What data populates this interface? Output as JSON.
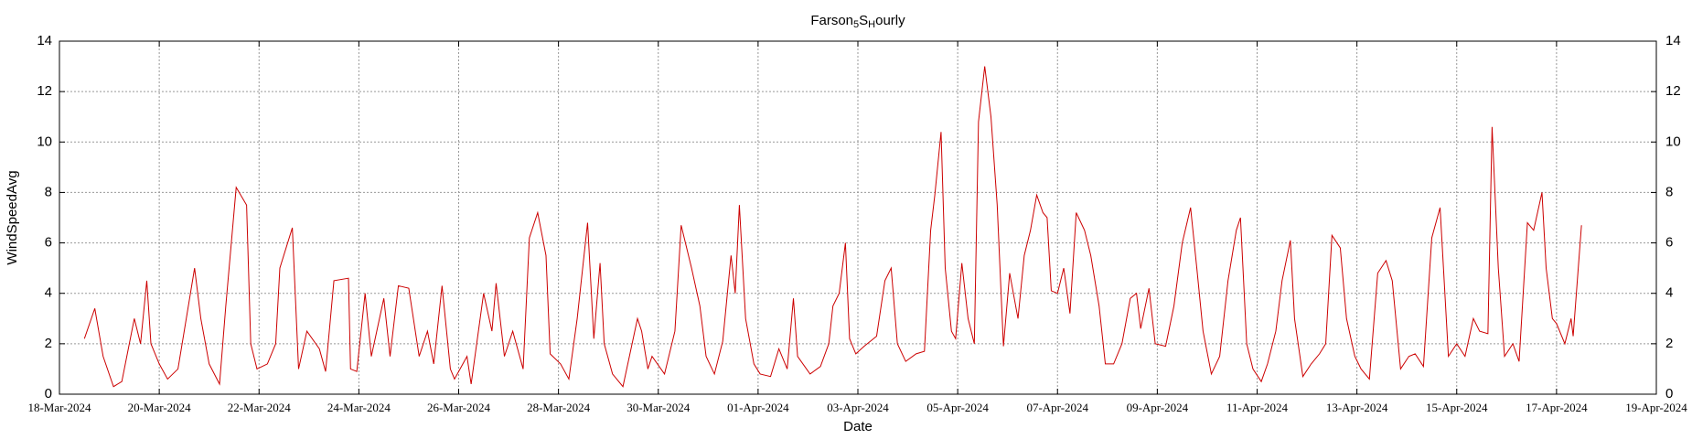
{
  "chart_data": {
    "type": "line",
    "title": [
      "Farson",
      "5",
      "S",
      "H",
      "ourly"
    ],
    "xlabel": "Date",
    "ylabel": "WindSpeedAvg",
    "color": "#cc0000",
    "grid": true,
    "right_axis_labels": true,
    "ylim": [
      0,
      14
    ],
    "yticks": [
      0,
      2,
      4,
      6,
      8,
      10,
      12,
      14
    ],
    "xlim": [
      "2024-03-18",
      "2024-04-19"
    ],
    "xticks": [
      {
        "value": "2024-03-18",
        "label": "18-Mar-2024"
      },
      {
        "value": "2024-03-20",
        "label": "20-Mar-2024"
      },
      {
        "value": "2024-03-22",
        "label": "22-Mar-2024"
      },
      {
        "value": "2024-03-24",
        "label": "24-Mar-2024"
      },
      {
        "value": "2024-03-26",
        "label": "26-Mar-2024"
      },
      {
        "value": "2024-03-28",
        "label": "28-Mar-2024"
      },
      {
        "value": "2024-03-30",
        "label": "30-Mar-2024"
      },
      {
        "value": "2024-04-01",
        "label": "01-Apr-2024"
      },
      {
        "value": "2024-04-03",
        "label": "03-Apr-2024"
      },
      {
        "value": "2024-04-05",
        "label": "05-Apr-2024"
      },
      {
        "value": "2024-04-07",
        "label": "07-Apr-2024"
      },
      {
        "value": "2024-04-09",
        "label": "09-Apr-2024"
      },
      {
        "value": "2024-04-11",
        "label": "11-Apr-2024"
      },
      {
        "value": "2024-04-13",
        "label": "13-Apr-2024"
      },
      {
        "value": "2024-04-15",
        "label": "15-Apr-2024"
      },
      {
        "value": "2024-04-17",
        "label": "17-Apr-2024"
      },
      {
        "value": "2024-04-19",
        "label": "19-Apr-2024"
      }
    ],
    "x": [
      "2024-03-18 12:00",
      "2024-03-18 17:00",
      "2024-03-18 21:00",
      "2024-03-19 02:00",
      "2024-03-19 06:00",
      "2024-03-19 12:00",
      "2024-03-19 15:00",
      "2024-03-19 18:00",
      "2024-03-19 20:00",
      "2024-03-20 00:00",
      "2024-03-20 04:00",
      "2024-03-20 09:00",
      "2024-03-20 13:00",
      "2024-03-20 17:00",
      "2024-03-20 20:00",
      "2024-03-21 00:00",
      "2024-03-21 05:00",
      "2024-03-21 08:00",
      "2024-03-21 13:00",
      "2024-03-21 18:00",
      "2024-03-21 20:00",
      "2024-03-21 23:00",
      "2024-03-22 04:00",
      "2024-03-22 08:00",
      "2024-03-22 10:00",
      "2024-03-22 16:00",
      "2024-03-22 19:00",
      "2024-03-22 23:00",
      "2024-03-23 05:00",
      "2024-03-23 08:00",
      "2024-03-23 12:00",
      "2024-03-23 19:00",
      "2024-03-23 20:00",
      "2024-03-23 23:00",
      "2024-03-24 03:00",
      "2024-03-24 06:00",
      "2024-03-24 12:00",
      "2024-03-24 15:00",
      "2024-03-24 19:00",
      "2024-03-25 00:00",
      "2024-03-25 05:00",
      "2024-03-25 09:00",
      "2024-03-25 12:00",
      "2024-03-25 16:00",
      "2024-03-25 20:00",
      "2024-03-25 22:00",
      "2024-03-26 04:00",
      "2024-03-26 06:00",
      "2024-03-26 12:00",
      "2024-03-26 16:00",
      "2024-03-26 18:00",
      "2024-03-26 22:00",
      "2024-03-27 02:00",
      "2024-03-27 07:00",
      "2024-03-27 10:00",
      "2024-03-27 14:00",
      "2024-03-27 18:00",
      "2024-03-27 20:00",
      "2024-03-28 01:00",
      "2024-03-28 05:00",
      "2024-03-28 09:00",
      "2024-03-28 14:00",
      "2024-03-28 17:00",
      "2024-03-28 20:00",
      "2024-03-28 22:00",
      "2024-03-29 02:00",
      "2024-03-29 07:00",
      "2024-03-29 14:00",
      "2024-03-29 16:00",
      "2024-03-29 19:00",
      "2024-03-29 21:00",
      "2024-03-30 03:00",
      "2024-03-30 08:00",
      "2024-03-30 11:00",
      "2024-03-30 16:00",
      "2024-03-30 20:00",
      "2024-03-30 23:00",
      "2024-03-31 03:00",
      "2024-03-31 07:00",
      "2024-03-31 11:00",
      "2024-03-31 13:00",
      "2024-03-31 15:00",
      "2024-03-31 18:00",
      "2024-03-31 22:00",
      "2024-04-01 01:00",
      "2024-04-01 06:00",
      "2024-04-01 10:00",
      "2024-04-01 14:00",
      "2024-04-01 17:00",
      "2024-04-01 19:00",
      "2024-04-02 01:00",
      "2024-04-02 06:00",
      "2024-04-02 10:00",
      "2024-04-02 12:00",
      "2024-04-02 15:00",
      "2024-04-02 18:00",
      "2024-04-02 20:00",
      "2024-04-02 23:00",
      "2024-04-03 03:00",
      "2024-04-03 09:00",
      "2024-04-03 13:00",
      "2024-04-03 16:00",
      "2024-04-03 19:00",
      "2024-04-03 23:00",
      "2024-04-04 04:00",
      "2024-04-04 08:00",
      "2024-04-04 11:00",
      "2024-04-04 13:00",
      "2024-04-04 16:00",
      "2024-04-04 18:00",
      "2024-04-04 21:00",
      "2024-04-04 23:00",
      "2024-04-05 02:00",
      "2024-04-05 05:00",
      "2024-04-05 08:00",
      "2024-04-05 10:00",
      "2024-04-05 13:00",
      "2024-04-05 16:00",
      "2024-04-05 19:00",
      "2024-04-05 22:00",
      "2024-04-06 01:00",
      "2024-04-06 05:00",
      "2024-04-06 08:00",
      "2024-04-06 11:00",
      "2024-04-06 14:00",
      "2024-04-06 17:00",
      "2024-04-06 19:00",
      "2024-04-06 21:00",
      "2024-04-07 00:00",
      "2024-04-07 03:00",
      "2024-04-07 06:00",
      "2024-04-07 09:00",
      "2024-04-07 13:00",
      "2024-04-07 16:00",
      "2024-04-07 20:00",
      "2024-04-07 23:00",
      "2024-04-08 03:00",
      "2024-04-08 07:00",
      "2024-04-08 11:00",
      "2024-04-08 14:00",
      "2024-04-08 16:00",
      "2024-04-08 20:00",
      "2024-04-08 23:00",
      "2024-04-09 04:00",
      "2024-04-09 08:00",
      "2024-04-09 12:00",
      "2024-04-09 16:00",
      "2024-04-09 19:00",
      "2024-04-09 22:00",
      "2024-04-10 02:00",
      "2024-04-10 06:00",
      "2024-04-10 10:00",
      "2024-04-10 14:00",
      "2024-04-10 16:00",
      "2024-04-10 19:00",
      "2024-04-10 22:00",
      "2024-04-11 02:00",
      "2024-04-11 05:00",
      "2024-04-11 09:00",
      "2024-04-11 12:00",
      "2024-04-11 16:00",
      "2024-04-11 18:00",
      "2024-04-11 22:00",
      "2024-04-12 02:00",
      "2024-04-12 06:00",
      "2024-04-12 09:00",
      "2024-04-12 12:00",
      "2024-04-12 16:00",
      "2024-04-12 19:00",
      "2024-04-12 23:00",
      "2024-04-13 02:00",
      "2024-04-13 06:00",
      "2024-04-13 10:00",
      "2024-04-13 14:00",
      "2024-04-13 17:00",
      "2024-04-13 21:00",
      "2024-04-14 01:00",
      "2024-04-14 04:00",
      "2024-04-14 08:00",
      "2024-04-14 12:00",
      "2024-04-14 16:00",
      "2024-04-14 20:00",
      "2024-04-15 00:00",
      "2024-04-15 04:00",
      "2024-04-15 08:00",
      "2024-04-15 11:00",
      "2024-04-15 15:00",
      "2024-04-15 17:00",
      "2024-04-15 20:00",
      "2024-04-15 23:00",
      "2024-04-16 03:00",
      "2024-04-16 06:00",
      "2024-04-16 10:00",
      "2024-04-16 13:00",
      "2024-04-16 17:00",
      "2024-04-16 19:00",
      "2024-04-16 22:00",
      "2024-04-17 00:00",
      "2024-04-17 04:00",
      "2024-04-17 07:00",
      "2024-04-17 08:00",
      "2024-04-17 12:00"
    ],
    "values": [
      2.2,
      3.4,
      1.5,
      0.3,
      0.5,
      3.0,
      2.0,
      4.5,
      2.0,
      1.2,
      0.6,
      1.0,
      3.0,
      5.0,
      3.0,
      1.2,
      0.4,
      3.5,
      8.2,
      7.5,
      2.0,
      1.0,
      1.2,
      2.0,
      5.0,
      6.6,
      1.0,
      2.5,
      1.8,
      0.9,
      4.5,
      4.6,
      1.0,
      0.9,
      4.0,
      1.5,
      3.8,
      1.5,
      4.3,
      4.2,
      1.5,
      2.5,
      1.2,
      4.3,
      1.0,
      0.6,
      1.5,
      0.4,
      4.0,
      2.5,
      4.4,
      1.5,
      2.5,
      1.0,
      6.2,
      7.2,
      5.5,
      1.6,
      1.2,
      0.6,
      3.0,
      6.8,
      2.2,
      5.2,
      2.0,
      0.8,
      0.3,
      3.0,
      2.5,
      1.0,
      1.5,
      0.8,
      2.5,
      6.7,
      5.0,
      3.5,
      1.5,
      0.8,
      2.1,
      5.5,
      4.0,
      7.5,
      3.0,
      1.2,
      0.8,
      0.7,
      1.8,
      1.0,
      3.8,
      1.5,
      0.8,
      1.1,
      2.0,
      3.5,
      4.0,
      6.0,
      2.2,
      1.6,
      1.9,
      2.3,
      4.5,
      5.0,
      2.0,
      1.3,
      1.6,
      1.7,
      6.5,
      7.9,
      10.4,
      5.0,
      2.5,
      2.2,
      5.2,
      3.0,
      2.0,
      10.8,
      13.0,
      11.0,
      7.5,
      1.9,
      4.8,
      3.0,
      5.5,
      6.5,
      7.9,
      7.2,
      7.0,
      4.1,
      4.0,
      5.0,
      3.2,
      7.2,
      6.5,
      5.5,
      3.5,
      1.2,
      1.2,
      2.0,
      3.8,
      4.0,
      2.6,
      4.2,
      2.0,
      1.9,
      3.5,
      6.0,
      7.4,
      5.0,
      2.5,
      0.8,
      1.5,
      4.5,
      6.5,
      7.0,
      2.0,
      1.0,
      0.5,
      1.2,
      2.5,
      4.5,
      6.1,
      3.0,
      0.7,
      1.2,
      1.6,
      2.0,
      6.3,
      5.8,
      3.0,
      1.5,
      1.0,
      0.6,
      4.8,
      5.3,
      4.5,
      1.0,
      1.5,
      1.6,
      1.1,
      6.2,
      7.4,
      1.5,
      2.0,
      1.5,
      3.0,
      2.5,
      2.4,
      10.6,
      5.0,
      1.5,
      2.0,
      1.3,
      6.8,
      6.5,
      8.0,
      5.0,
      3.0,
      2.8,
      2.0,
      3.0,
      2.3,
      6.7
    ]
  }
}
